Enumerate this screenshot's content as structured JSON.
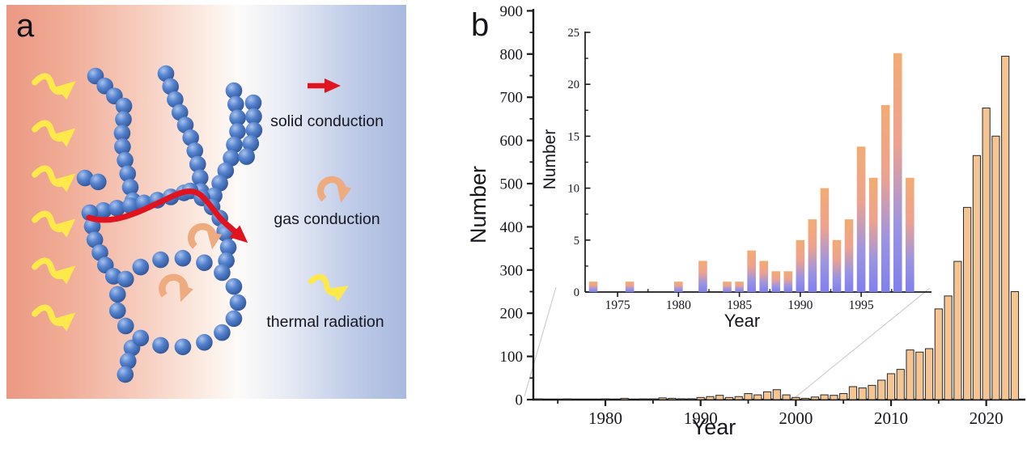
{
  "figure": {
    "panel_a": {
      "label": "a",
      "legend": [
        {
          "icon": "solid-conduction-arrow-icon",
          "label": "solid conduction",
          "color": "#e0131f"
        },
        {
          "icon": "gas-conduction-arrow-icon",
          "label": "gas conduction",
          "color": "#eeab7f"
        },
        {
          "icon": "thermal-radiation-arrow-icon",
          "label": "thermal radiation",
          "color": "#fdea4a"
        }
      ],
      "background": {
        "hot_side": "#eb9883",
        "cold_side": "#a8b9df"
      },
      "particle_color": "#4a77c6"
    },
    "panel_b": {
      "label": "b",
      "main_axis": {
        "xlabel": "Year",
        "ylabel": "Number"
      },
      "inset_axis": {
        "xlabel": "Year",
        "ylabel": "Number"
      }
    }
  },
  "chart_data": [
    {
      "id": "main",
      "type": "bar",
      "title": "",
      "xlabel": "Year",
      "ylabel": "Number",
      "ylim": [
        0,
        900
      ],
      "yticks": [
        0,
        100,
        200,
        300,
        400,
        500,
        600,
        700,
        800,
        900
      ],
      "yticks_minor": [
        50,
        150,
        250,
        350,
        450,
        550,
        650,
        750,
        850
      ],
      "xticks": [
        1980,
        1990,
        2000,
        2010,
        2020
      ],
      "xticks_minor": [
        1975,
        1985,
        1995,
        2005,
        2015
      ],
      "grid": false,
      "legend_position": "none",
      "bar_fill": "#f5c493",
      "bar_stroke": "#2a2a2a",
      "years": [
        1973,
        1974,
        1975,
        1976,
        1977,
        1978,
        1979,
        1980,
        1981,
        1982,
        1983,
        1984,
        1985,
        1986,
        1987,
        1988,
        1989,
        1990,
        1991,
        1992,
        1993,
        1994,
        1995,
        1996,
        1997,
        1998,
        1999,
        2000,
        2001,
        2002,
        2003,
        2004,
        2005,
        2006,
        2007,
        2008,
        2009,
        2010,
        2011,
        2012,
        2013,
        2014,
        2015,
        2016,
        2017,
        2018,
        2019,
        2020,
        2021,
        2022,
        2023
      ],
      "values": [
        1,
        0,
        0,
        1,
        0,
        0,
        0,
        1,
        0,
        3,
        0,
        1,
        1,
        4,
        3,
        2,
        2,
        5,
        7,
        10,
        5,
        7,
        14,
        11,
        18,
        23,
        11,
        5,
        3,
        6,
        11,
        10,
        14,
        30,
        27,
        33,
        45,
        60,
        70,
        115,
        110,
        118,
        210,
        240,
        320,
        445,
        565,
        675,
        610,
        795,
        250
      ]
    },
    {
      "id": "inset",
      "type": "bar",
      "title": "",
      "xlabel": "Year",
      "ylabel": "Number",
      "ylim": [
        0,
        25
      ],
      "yticks": [
        0,
        5,
        10,
        15,
        20,
        25
      ],
      "yticks_minor": [
        2.5,
        7.5,
        12.5,
        17.5,
        22.5
      ],
      "xticks": [
        1975,
        1980,
        1985,
        1990,
        1995
      ],
      "xticks_minor": [
        1977.5,
        1982.5,
        1987.5,
        1992.5,
        1997.5
      ],
      "grid": false,
      "legend_position": "none",
      "bar_gradient_top": "#f3ab72",
      "bar_gradient_bottom": "#7f7fee",
      "years": [
        1973,
        1974,
        1975,
        1976,
        1977,
        1978,
        1979,
        1980,
        1981,
        1982,
        1983,
        1984,
        1985,
        1986,
        1987,
        1988,
        1989,
        1990,
        1991,
        1992,
        1993,
        1994,
        1995,
        1996,
        1997,
        1998,
        1999
      ],
      "values": [
        1,
        0,
        0,
        1,
        0,
        0,
        0,
        1,
        0,
        3,
        0,
        1,
        1,
        4,
        3,
        2,
        2,
        5,
        7,
        10,
        5,
        7,
        14,
        11,
        18,
        23,
        11
      ]
    }
  ]
}
